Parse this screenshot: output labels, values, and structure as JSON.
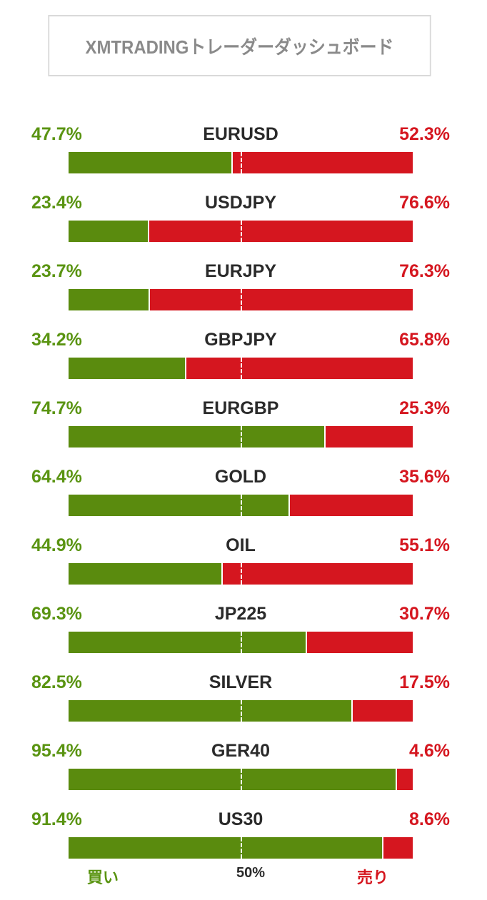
{
  "header": {
    "title": "XMTRADINGトレーダーダッシュボード"
  },
  "colors": {
    "buy": "#5a8b0e",
    "buy_text": "#5a9412",
    "sell": "#d5161f",
    "symbol_text": "#2a2a2a",
    "title_text": "#8a8a8a"
  },
  "chart_data": {
    "type": "bar",
    "orientation": "horizontal-stacked",
    "title": "XMTRADINGトレーダーダッシュボード",
    "categories": [
      "EURUSD",
      "USDJPY",
      "EURJPY",
      "GBPJPY",
      "EURGBP",
      "GOLD",
      "OIL",
      "JP225",
      "SILVER",
      "GER40",
      "US30"
    ],
    "series": [
      {
        "name": "買い",
        "values": [
          47.7,
          23.4,
          23.7,
          34.2,
          74.7,
          64.4,
          44.9,
          69.3,
          82.5,
          95.4,
          91.4
        ]
      },
      {
        "name": "売り",
        "values": [
          52.3,
          76.6,
          76.3,
          65.8,
          25.3,
          35.6,
          55.1,
          30.7,
          17.5,
          4.6,
          8.6
        ]
      }
    ],
    "rows": [
      {
        "symbol": "EURUSD",
        "buy": 47.7,
        "sell": 52.3,
        "buy_label": "47.7%",
        "sell_label": "52.3%"
      },
      {
        "symbol": "USDJPY",
        "buy": 23.4,
        "sell": 76.6,
        "buy_label": "23.4%",
        "sell_label": "76.6%"
      },
      {
        "symbol": "EURJPY",
        "buy": 23.7,
        "sell": 76.3,
        "buy_label": "23.7%",
        "sell_label": "76.3%"
      },
      {
        "symbol": "GBPJPY",
        "buy": 34.2,
        "sell": 65.8,
        "buy_label": "34.2%",
        "sell_label": "65.8%"
      },
      {
        "symbol": "EURGBP",
        "buy": 74.7,
        "sell": 25.3,
        "buy_label": "74.7%",
        "sell_label": "25.3%"
      },
      {
        "symbol": "GOLD",
        "buy": 64.4,
        "sell": 35.6,
        "buy_label": "64.4%",
        "sell_label": "35.6%"
      },
      {
        "symbol": "OIL",
        "buy": 44.9,
        "sell": 55.1,
        "buy_label": "44.9%",
        "sell_label": "55.1%"
      },
      {
        "symbol": "JP225",
        "buy": 69.3,
        "sell": 30.7,
        "buy_label": "69.3%",
        "sell_label": "30.7%"
      },
      {
        "symbol": "SILVER",
        "buy": 82.5,
        "sell": 17.5,
        "buy_label": "82.5%",
        "sell_label": "17.5%"
      },
      {
        "symbol": "GER40",
        "buy": 95.4,
        "sell": 4.6,
        "buy_label": "95.4%",
        "sell_label": "4.6%"
      },
      {
        "symbol": "US30",
        "buy": 91.4,
        "sell": 8.6,
        "buy_label": "91.4%",
        "sell_label": "8.6%"
      }
    ],
    "xlim": [
      0,
      100
    ],
    "midline": 50,
    "grid": false
  },
  "footer": {
    "buy_label": "買い",
    "mid_label": "50%",
    "sell_label": "売り"
  }
}
